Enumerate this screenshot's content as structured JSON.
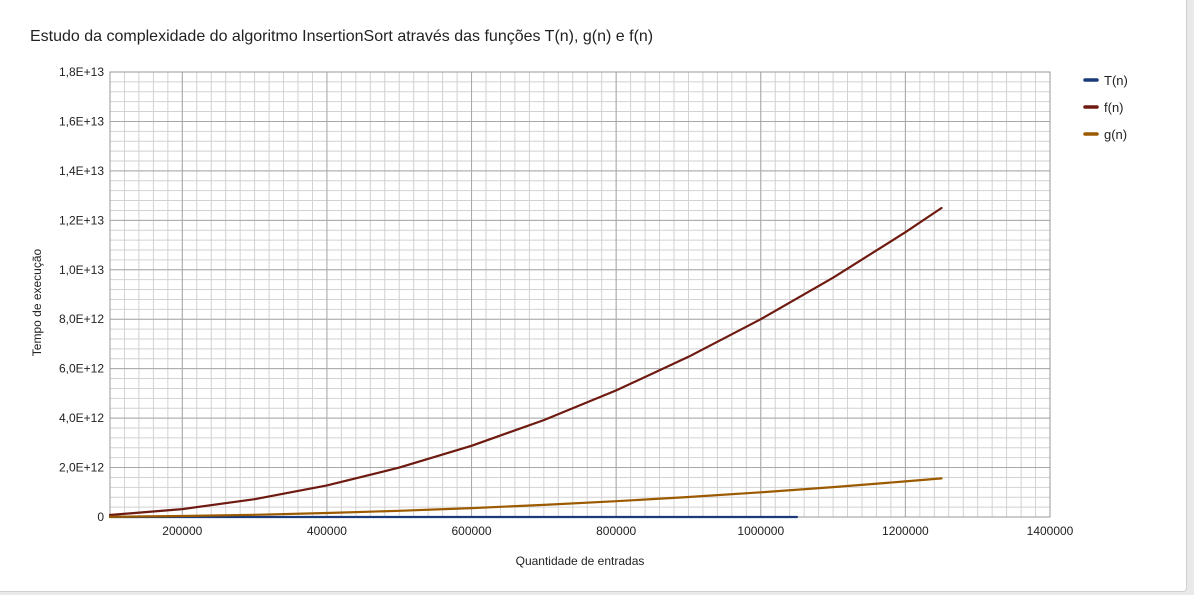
{
  "chart_data": {
    "type": "line",
    "title": "Estudo da complexidade do algoritmo InsertionSort através das funções T(n), g(n) e f(n)",
    "xlabel": "Quantidade de entradas",
    "ylabel": "Tempo de execução",
    "xlim": [
      100000,
      1400000
    ],
    "ylim": [
      0,
      18000000000000
    ],
    "x_ticks": [
      200000,
      400000,
      600000,
      800000,
      1000000,
      1200000,
      1400000
    ],
    "x_tick_labels": [
      "200000",
      "400000",
      "600000",
      "800000",
      "1000000",
      "1200000",
      "1400000"
    ],
    "y_ticks": [
      0,
      2000000000000,
      4000000000000,
      6000000000000,
      8000000000000,
      10000000000000,
      12000000000000,
      14000000000000,
      16000000000000,
      18000000000000
    ],
    "y_tick_labels": [
      "0",
      "2,0E+12",
      "4,0E+12",
      "6,0E+12",
      "8,0E+12",
      "1,0E+13",
      "1,2E+13",
      "1,4E+13",
      "1,6E+13",
      "1,8E+13"
    ],
    "grid": true,
    "legend_position": "right",
    "series": [
      {
        "name": "T(n)",
        "color": "#1a3a7a",
        "x": [
          100000,
          300000,
          500000,
          700000,
          900000,
          1050000
        ],
        "y": [
          0,
          0,
          0,
          0,
          0,
          0
        ]
      },
      {
        "name": "f(n)",
        "color": "#6e1a10",
        "x": [
          100000,
          200000,
          300000,
          400000,
          500000,
          600000,
          700000,
          800000,
          900000,
          1000000,
          1100000,
          1200000,
          1250000
        ],
        "y": [
          80000000000,
          320000000000,
          720000000000,
          1280000000000,
          2000000000000,
          2880000000000,
          3920000000000,
          5120000000000,
          6480000000000,
          8000000000000,
          9680000000000,
          11520000000000,
          12500000000000
        ]
      },
      {
        "name": "g(n)",
        "color": "#9c5a00",
        "x": [
          100000,
          200000,
          300000,
          400000,
          500000,
          600000,
          700000,
          800000,
          900000,
          1000000,
          1100000,
          1200000,
          1250000
        ],
        "y": [
          10000000000,
          40000000000,
          90000000000,
          160000000000,
          250000000000,
          360000000000,
          490000000000,
          640000000000,
          810000000000,
          1000000000000,
          1210000000000,
          1440000000000,
          1562500000000
        ]
      }
    ]
  }
}
